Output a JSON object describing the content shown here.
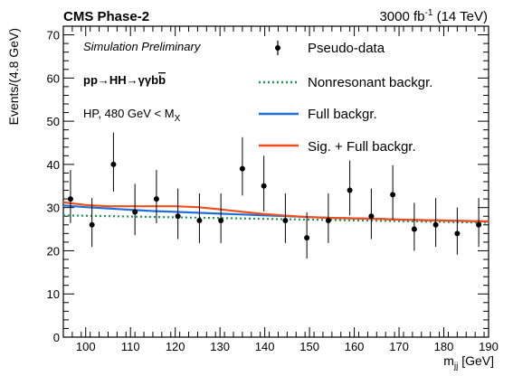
{
  "header": {
    "experiment": "CMS Phase-2",
    "lumi_prefix": "3000 fb",
    "lumi_exp": "-1",
    "lumi_suffix": " (14 TeV)"
  },
  "annotations": {
    "simulation": "Simulation Preliminary",
    "process_pre": "pp→HH→γγb",
    "process_bbar": "b",
    "category_pre": "HP, 480 GeV < M",
    "category_sub": "X"
  },
  "legend": {
    "data": "Pseudo-data",
    "nonres": "Nonresonant backgr.",
    "full": "Full backgr.",
    "sig": "Sig. + Full backgr."
  },
  "colors": {
    "nonres": "#1a9850",
    "full": "#1f6fdc",
    "sig": "#ee4f1b",
    "data": "#000000"
  },
  "chart_data": {
    "type": "scatter",
    "xlabel_main": "m",
    "xlabel_sub": "jj",
    "xlabel_unit": " [GeV]",
    "ylabel": "Events/(4.8 GeV)",
    "xlim": [
      95,
      190
    ],
    "ylim": [
      0,
      72
    ],
    "xticks": [
      100,
      110,
      120,
      130,
      140,
      150,
      160,
      170,
      180,
      190
    ],
    "yticks": [
      0,
      10,
      20,
      30,
      40,
      50,
      60,
      70
    ],
    "series": [
      {
        "name": "Pseudo-data",
        "kind": "points",
        "x": [
          96.6,
          101.4,
          106.2,
          111.0,
          115.8,
          120.6,
          125.4,
          130.2,
          135.0,
          139.8,
          144.6,
          149.4,
          154.2,
          159.0,
          163.8,
          168.6,
          173.4,
          178.2,
          183.0,
          187.8
        ],
        "y": [
          32,
          26,
          40,
          29,
          32,
          28,
          27,
          27,
          39,
          35,
          27,
          23,
          27,
          34,
          28,
          33,
          25,
          26,
          24,
          26
        ],
        "yerr_low": [
          5.6,
          5.1,
          6.3,
          5.4,
          5.6,
          5.3,
          5.2,
          5.2,
          6.2,
          5.9,
          5.2,
          4.8,
          5.2,
          5.8,
          5.3,
          5.7,
          5.0,
          5.1,
          4.9,
          5.1
        ],
        "yerr_high": [
          6.7,
          6.2,
          7.4,
          6.5,
          6.7,
          6.4,
          6.3,
          6.3,
          7.3,
          7.0,
          6.3,
          5.9,
          6.3,
          6.9,
          6.4,
          6.8,
          6.1,
          6.2,
          6.0,
          6.2
        ]
      },
      {
        "name": "Nonresonant backgr.",
        "kind": "line",
        "style": "dotted",
        "x": [
          95,
          190
        ],
        "y": [
          28.2,
          26.5
        ]
      },
      {
        "name": "Full backgr.",
        "kind": "line",
        "style": "solid",
        "x": [
          95,
          100,
          105,
          110,
          115,
          120,
          125,
          130,
          135,
          140,
          145,
          150,
          155,
          160,
          165,
          170,
          175,
          180,
          185,
          190
        ],
        "y": [
          30.5,
          30.1,
          29.8,
          29.5,
          29.2,
          29.0,
          28.8,
          28.6,
          28.4,
          28.2,
          28.0,
          27.8,
          27.6,
          27.5,
          27.4,
          27.2,
          27.1,
          27.0,
          26.9,
          26.8
        ]
      },
      {
        "name": "Sig. + Full backgr.",
        "kind": "line",
        "style": "solid",
        "x": [
          95,
          100,
          105,
          110,
          115,
          120,
          125,
          130,
          135,
          140,
          145,
          150,
          155,
          160,
          165,
          170,
          175,
          180,
          185,
          190
        ],
        "y": [
          31.2,
          30.6,
          30.3,
          30.3,
          30.3,
          30.3,
          30.1,
          29.6,
          29.0,
          28.5,
          28.1,
          27.8,
          27.6,
          27.5,
          27.4,
          27.2,
          27.1,
          27.0,
          26.9,
          26.8
        ]
      }
    ]
  }
}
